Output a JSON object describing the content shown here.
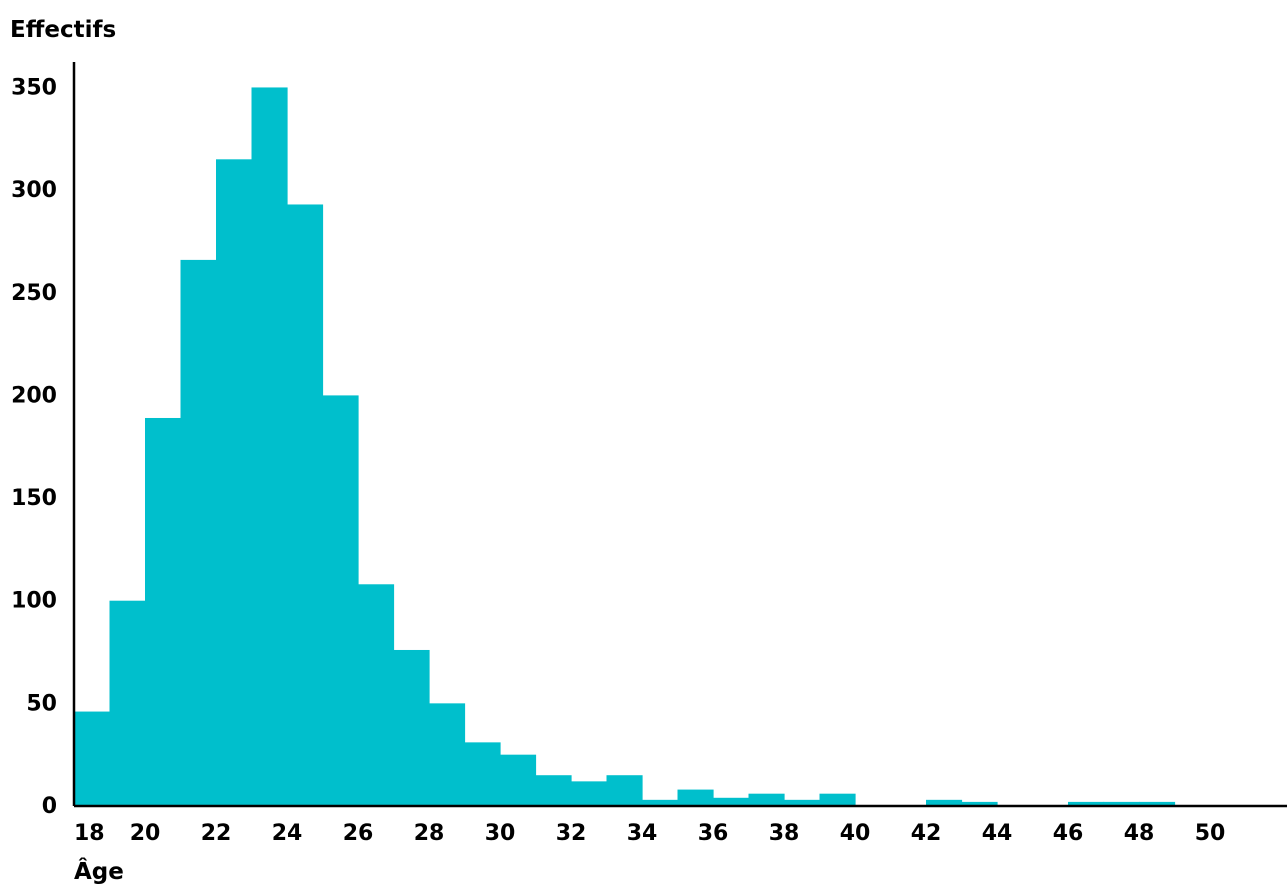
{
  "chart_data": {
    "type": "bar",
    "title": "",
    "xlabel": "Âge",
    "ylabel": "Effectifs",
    "bar_color": "#00BFCC",
    "axis_color": "#000000",
    "grid": false,
    "xlim": [
      18,
      51.5
    ],
    "ylim": [
      0,
      370
    ],
    "x_ticks": [
      18,
      20,
      22,
      24,
      26,
      28,
      30,
      32,
      34,
      36,
      38,
      40,
      42,
      44,
      46,
      48,
      50
    ],
    "y_ticks": [
      0,
      50,
      100,
      150,
      200,
      250,
      300,
      350
    ],
    "bins": [
      {
        "start": 18,
        "end": 19,
        "value": 46
      },
      {
        "start": 19,
        "end": 20,
        "value": 100
      },
      {
        "start": 20,
        "end": 21,
        "value": 189
      },
      {
        "start": 21,
        "end": 22,
        "value": 266
      },
      {
        "start": 22,
        "end": 23,
        "value": 315
      },
      {
        "start": 23,
        "end": 24,
        "value": 350
      },
      {
        "start": 24,
        "end": 25,
        "value": 293
      },
      {
        "start": 25,
        "end": 26,
        "value": 200
      },
      {
        "start": 26,
        "end": 27,
        "value": 108
      },
      {
        "start": 27,
        "end": 28,
        "value": 76
      },
      {
        "start": 28,
        "end": 29,
        "value": 50
      },
      {
        "start": 29,
        "end": 30,
        "value": 31
      },
      {
        "start": 30,
        "end": 31,
        "value": 25
      },
      {
        "start": 31,
        "end": 32,
        "value": 15
      },
      {
        "start": 32,
        "end": 33,
        "value": 12
      },
      {
        "start": 33,
        "end": 34,
        "value": 15
      },
      {
        "start": 34,
        "end": 35,
        "value": 3
      },
      {
        "start": 35,
        "end": 36,
        "value": 8
      },
      {
        "start": 36,
        "end": 37,
        "value": 4
      },
      {
        "start": 37,
        "end": 38,
        "value": 6
      },
      {
        "start": 38,
        "end": 39,
        "value": 3
      },
      {
        "start": 39,
        "end": 40,
        "value": 6
      },
      {
        "start": 42,
        "end": 43,
        "value": 3
      },
      {
        "start": 43,
        "end": 44,
        "value": 2
      },
      {
        "start": 46,
        "end": 47,
        "value": 2
      },
      {
        "start": 47,
        "end": 48,
        "value": 2
      },
      {
        "start": 48,
        "end": 49,
        "value": 2
      }
    ]
  }
}
